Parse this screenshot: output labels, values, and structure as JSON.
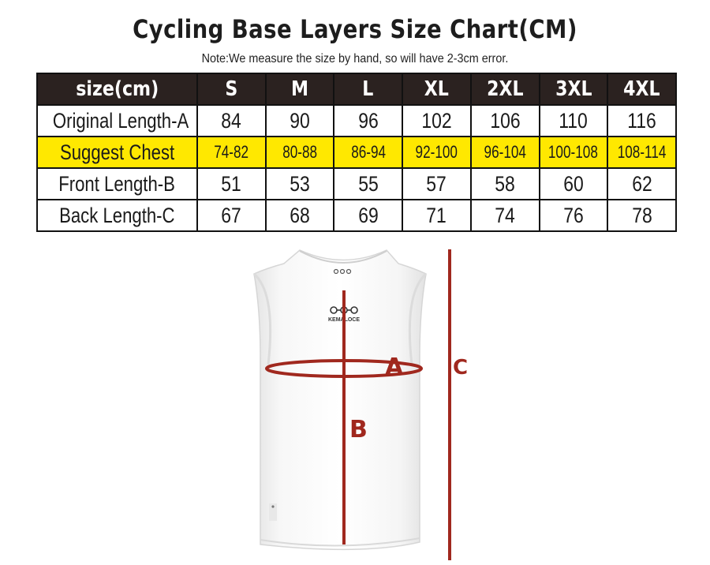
{
  "title": "Cycling Base Layers Size Chart(CM)",
  "note": "Note:We measure the size by hand, so will have 2-3cm error.",
  "table": {
    "header": [
      "size(cm)",
      "S",
      "M",
      "L",
      "XL",
      "2XL",
      "3XL",
      "4XL"
    ],
    "rows": [
      {
        "label": "Original Length-A",
        "values": [
          "84",
          "90",
          "96",
          "102",
          "106",
          "110",
          "116"
        ],
        "highlight": false
      },
      {
        "label": "Suggest Chest",
        "values": [
          "74-82",
          "80-88",
          "86-94",
          "92-100",
          "96-104",
          "100-108",
          "108-114"
        ],
        "highlight": true
      },
      {
        "label": "Front Length-B",
        "values": [
          "51",
          "53",
          "55",
          "57",
          "58",
          "60",
          "62"
        ],
        "highlight": false
      },
      {
        "label": "Back Length-C",
        "values": [
          "67",
          "68",
          "69",
          "71",
          "74",
          "76",
          "78"
        ],
        "highlight": false
      }
    ]
  },
  "diagram": {
    "label_a": "A",
    "label_b": "B",
    "label_c": "C",
    "brand": "KEMALOCE",
    "measure_color": "#a0281e",
    "highlight_color": "#ffe800",
    "header_color": "#2b2220"
  }
}
